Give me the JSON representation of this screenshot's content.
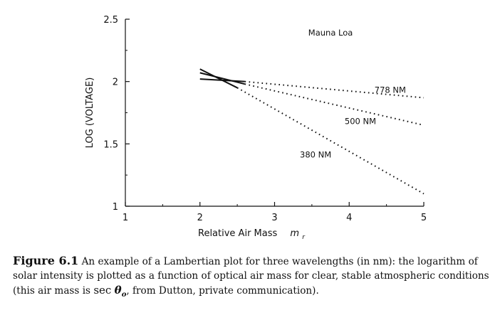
{
  "chart_data": {
    "type": "line",
    "title": "",
    "xlabel": "Relative Air Mass",
    "xlabel_symbol": "m",
    "xlabel_subscript": "r",
    "ylabel": "LOG (VOLTAGE)",
    "xlim": [
      1,
      5
    ],
    "ylim": [
      1,
      2.5
    ],
    "xticks": [
      1,
      2,
      3,
      4,
      5
    ],
    "yticks": [
      1,
      1.5,
      2,
      2.5
    ],
    "xtick_labels": [
      "1",
      "2",
      "3",
      "4",
      "5"
    ],
    "ytick_labels": [
      "1",
      "1.5",
      "2",
      "2.5"
    ],
    "grid": false,
    "annotations": [
      {
        "text": "Mauna Loa",
        "x": 3.75,
        "y": 2.37
      },
      {
        "text": "778 NM",
        "x": 4.55,
        "y": 1.91
      },
      {
        "text": "500 NM",
        "x": 4.15,
        "y": 1.66
      },
      {
        "text": "380 NM",
        "x": 3.55,
        "y": 1.39
      }
    ],
    "series": [
      {
        "name": "778 NM",
        "solid": [
          [
            2.0,
            2.02
          ],
          [
            2.6,
            2.0
          ]
        ],
        "dotted": [
          [
            2.6,
            2.0
          ],
          [
            5.0,
            1.87
          ]
        ]
      },
      {
        "name": "500 NM",
        "solid": [
          [
            2.0,
            2.07
          ],
          [
            2.6,
            1.98
          ]
        ],
        "dotted": [
          [
            2.6,
            1.98
          ],
          [
            5.0,
            1.65
          ]
        ]
      },
      {
        "name": "380 NM",
        "solid": [
          [
            2.0,
            2.1
          ],
          [
            2.5,
            1.95
          ]
        ],
        "dotted": [
          [
            2.5,
            1.95
          ],
          [
            5.0,
            1.1
          ]
        ]
      }
    ]
  },
  "caption": {
    "label": "Figure 6.1",
    "text": "An example of a Lambertian plot for three wavelengths (in nm): the logarithm of solar intensity is plotted as a function of optical air mass for clear, stable atmospheric conditions (this air mass is",
    "sec_symbol": "sec",
    "theta_symbol": "θ",
    "theta_subscript": "o",
    "text_end": ", from Dutton, private communication)."
  }
}
